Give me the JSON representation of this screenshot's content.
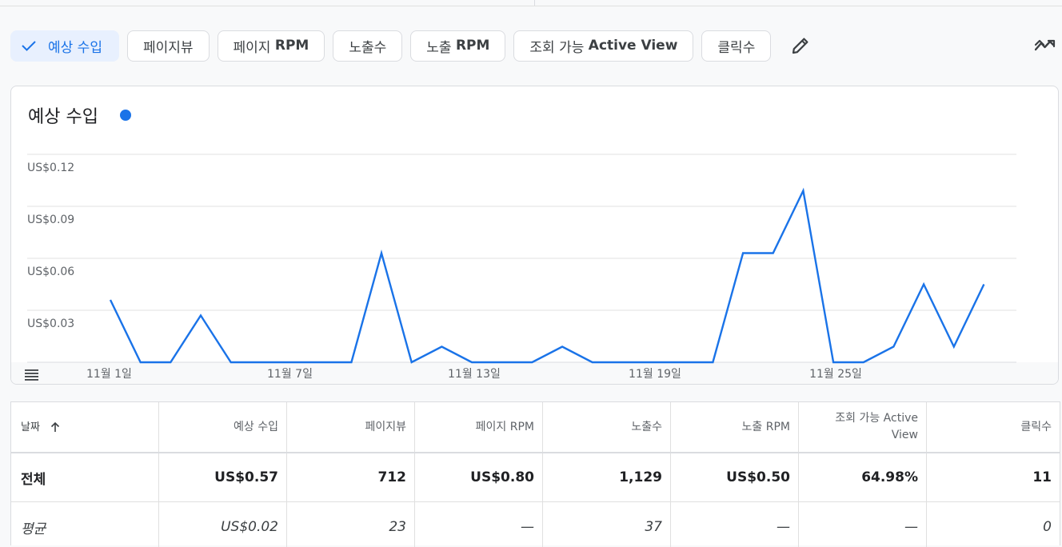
{
  "metric_chips": [
    {
      "label": "예상 수입",
      "selected": true
    },
    {
      "label": "페이지뷰"
    },
    {
      "label": "페이지 ",
      "label_bold": "RPM"
    },
    {
      "label": "노출수"
    },
    {
      "label": "노출 ",
      "label_bold": "RPM"
    },
    {
      "label": "조회 가능 ",
      "label_bold": "Active View"
    },
    {
      "label": "클릭수"
    }
  ],
  "icons": {
    "selected": "check-icon",
    "edit": "pencil-icon",
    "chart_mode": "trend-icon",
    "chart_menu": "menu-icon",
    "sort": "arrow-up-icon"
  },
  "colors": {
    "accent": "#1a73e8",
    "chip_selected_bg": "#e8f0fe"
  },
  "chart_title": "예상 수입",
  "chart_data": {
    "type": "line",
    "title": "예상 수입",
    "x_labels": [
      "11월 1일",
      "11월 7일",
      "11월 13일",
      "11월 19일",
      "11월 25일"
    ],
    "y_ticks": [
      "US$0.12",
      "US$0.09",
      "US$0.06",
      "US$0.03"
    ],
    "ylim": [
      0,
      0.12
    ],
    "grid": true,
    "series": [
      {
        "color": "#1a73e8",
        "x": [
          "11-01",
          "11-02",
          "11-03",
          "11-04",
          "11-05",
          "11-06",
          "11-07",
          "11-08",
          "11-09",
          "11-10",
          "11-11",
          "11-12",
          "11-13",
          "11-14",
          "11-15",
          "11-16",
          "11-17",
          "11-18",
          "11-19",
          "11-20",
          "11-21",
          "11-22",
          "11-23",
          "11-24",
          "11-25",
          "11-26",
          "11-27",
          "11-28",
          "11-29",
          "11-30"
        ],
        "values": [
          0.04,
          0,
          0,
          0.03,
          0,
          0,
          0,
          0,
          0,
          0.07,
          0,
          0.01,
          0,
          0,
          0,
          0.01,
          0,
          0,
          0,
          0,
          0,
          0.07,
          0.07,
          0.11,
          0,
          0,
          0.01,
          0.05,
          0.01,
          0.05
        ]
      }
    ]
  },
  "table": {
    "headers": [
      "날짜",
      "예상 수입",
      "페이지뷰",
      "페이지 RPM",
      "노출수",
      "노출 RPM",
      "조회 가능 Active View",
      "클릭수"
    ],
    "total": [
      "전체",
      "US$0.57",
      "712",
      "US$0.80",
      "1,129",
      "US$0.50",
      "64.98%",
      "11"
    ],
    "average": [
      "평균",
      "US$0.02",
      "23",
      "—",
      "37",
      "—",
      "—",
      "0"
    ]
  }
}
